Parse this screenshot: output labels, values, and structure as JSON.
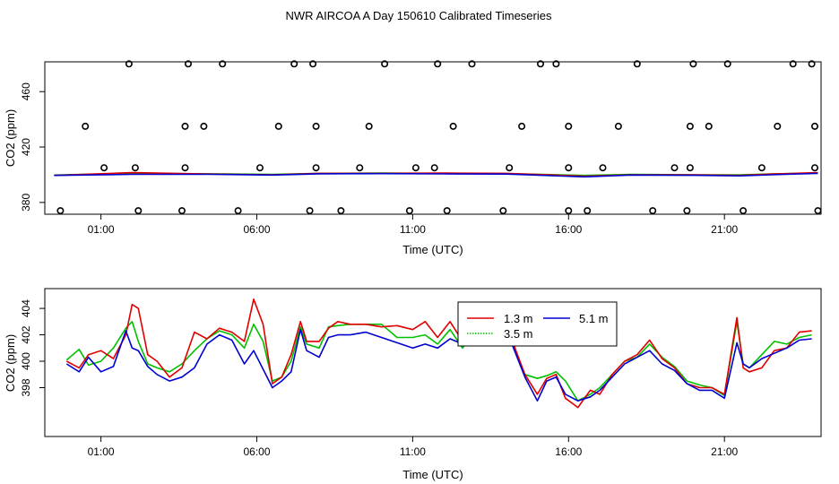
{
  "title": "NWR AIRCOA A  Day 150610  Calibrated Timeseries",
  "colors": {
    "s1": "#e00000",
    "s2": "#00c000",
    "s3": "#0000d0"
  },
  "chart_data": [
    {
      "type": "scatter",
      "name": "top",
      "xlabel": "Time (UTC)",
      "ylabel": "CO2 (ppm)",
      "xlim": [
        -0.8,
        24.1
      ],
      "ylim": [
        371.5,
        481.5
      ],
      "xticks": [
        1,
        6,
        11,
        16,
        21
      ],
      "xtick_labels": [
        "01:00",
        "06:00",
        "11:00",
        "16:00",
        "21:00"
      ],
      "yticks": [
        380,
        420,
        460
      ],
      "ytick_labels": [
        "380",
        "420",
        "460"
      ],
      "series": [
        {
          "name": "cal_points",
          "marker": "circle-open",
          "x": [
            -0.3,
            2.2,
            3.6,
            5.4,
            7.7,
            8.7,
            10.9,
            12.1,
            13.9,
            16.0,
            16.6,
            18.7,
            19.8,
            21.6,
            24.0,
            1.1,
            2.1,
            3.7,
            6.1,
            7.9,
            9.3,
            11.1,
            11.7,
            14.1,
            16.0,
            17.1,
            19.4,
            19.9,
            22.2,
            23.9,
            0.5,
            3.7,
            4.3,
            6.7,
            7.9,
            9.6,
            12.3,
            14.5,
            16.0,
            17.6,
            19.9,
            20.5,
            22.7,
            23.9,
            1.9,
            3.8,
            4.9,
            7.2,
            7.8,
            10.1,
            11.8,
            12.9,
            15.1,
            15.6,
            18.2,
            20.0,
            21.1,
            23.2,
            23.8
          ],
          "y": [
            374,
            374,
            374,
            374,
            374,
            374,
            374,
            374,
            374,
            374,
            374,
            374,
            374,
            374,
            374,
            405,
            405,
            405,
            405,
            405,
            405,
            405,
            405,
            405,
            405,
            405,
            405,
            405,
            405,
            405,
            435,
            435,
            435,
            435,
            435,
            435,
            435,
            435,
            435,
            435,
            435,
            435,
            435,
            435,
            480,
            480,
            480,
            480,
            480,
            480,
            480,
            480,
            480,
            480,
            480,
            480,
            480,
            480,
            480
          ]
        },
        {
          "name": "1.3 m",
          "x": [
            -0.5,
            2.0,
            4.5,
            6.5,
            8.0,
            10.0,
            12.0,
            14.0,
            16.5,
            18.0,
            20.0,
            21.5,
            22.5,
            24.0
          ],
          "y": [
            399.5,
            401.5,
            400.5,
            400.0,
            401.0,
            401.0,
            401.2,
            401.0,
            399.0,
            400.0,
            400.0,
            399.5,
            400.5,
            401.5
          ]
        },
        {
          "name": "3.5 m",
          "x": [
            -0.5,
            2.0,
            4.5,
            6.5,
            8.0,
            10.0,
            12.0,
            14.0,
            16.5,
            18.0,
            20.0,
            21.5,
            22.5,
            24.0
          ],
          "y": [
            399.8,
            401.0,
            400.7,
            400.3,
            401.0,
            401.2,
            401.0,
            400.8,
            399.5,
            400.2,
            400.0,
            400.0,
            400.6,
            401.2
          ]
        },
        {
          "name": "5.1 m",
          "x": [
            -0.5,
            2.0,
            4.5,
            6.5,
            8.0,
            10.0,
            12.0,
            14.0,
            16.5,
            18.0,
            20.0,
            21.5,
            22.5,
            24.0
          ],
          "y": [
            399.5,
            400.3,
            400.3,
            399.8,
            400.7,
            400.8,
            400.6,
            400.5,
            398.5,
            399.8,
            399.6,
            399.2,
            400.0,
            401.0
          ]
        }
      ]
    },
    {
      "type": "line",
      "name": "bottom",
      "xlabel": "Time (UTC)",
      "ylabel": "CO2 (ppm)",
      "xlim": [
        -0.8,
        24.1
      ],
      "ylim": [
        394.3,
        405.5
      ],
      "xticks": [
        1,
        6,
        11,
        16,
        21
      ],
      "xtick_labels": [
        "01:00",
        "06:00",
        "11:00",
        "16:00",
        "21:00"
      ],
      "yticks": [
        398,
        400,
        402,
        404
      ],
      "ytick_labels": [
        "398",
        "400",
        "402",
        "404"
      ],
      "legend": {
        "position": "top-right-inner",
        "entries": [
          "1.3 m",
          "3.5 m",
          "5.1 m"
        ]
      },
      "series": [
        {
          "name": "1.3 m",
          "x": [
            -0.1,
            0.3,
            0.6,
            1.0,
            1.4,
            1.8,
            2.0,
            2.2,
            2.5,
            2.8,
            3.2,
            3.6,
            4.0,
            4.4,
            4.8,
            5.2,
            5.6,
            5.9,
            6.2,
            6.5,
            6.8,
            7.1,
            7.4,
            7.6,
            8.0,
            8.3,
            8.6,
            9.0,
            9.5,
            10.0,
            10.5,
            11.0,
            11.4,
            11.8,
            12.2,
            12.6,
            13.0,
            13.4,
            13.8,
            14.2,
            14.6,
            15.0,
            15.3,
            15.6,
            15.9,
            16.3,
            16.7,
            17.0,
            17.4,
            17.8,
            18.2,
            18.6,
            19.0,
            19.4,
            19.8,
            20.2,
            20.6,
            21.0,
            21.4,
            21.6,
            21.8,
            22.2,
            22.6,
            23.0,
            23.4,
            23.8
          ],
          "y": [
            400.0,
            399.5,
            400.5,
            400.8,
            400.2,
            402.0,
            404.3,
            404.0,
            400.5,
            400.0,
            398.8,
            399.5,
            402.2,
            401.7,
            402.5,
            402.2,
            401.5,
            404.7,
            402.8,
            398.3,
            398.8,
            400.5,
            403.0,
            401.5,
            401.5,
            402.5,
            403.0,
            402.8,
            402.8,
            402.6,
            402.7,
            402.4,
            403.0,
            401.8,
            403.0,
            401.5,
            402.4,
            401.8,
            401.7,
            401.5,
            399.0,
            397.5,
            398.7,
            399.0,
            397.2,
            396.5,
            397.8,
            397.5,
            399.0,
            400.0,
            400.5,
            401.6,
            400.2,
            399.5,
            398.3,
            398.0,
            398.0,
            397.5,
            403.3,
            399.5,
            399.2,
            399.5,
            400.8,
            401.0,
            402.2,
            402.3
          ]
        },
        {
          "name": "3.5 m",
          "x": [
            -0.1,
            0.3,
            0.6,
            1.0,
            1.4,
            1.8,
            2.0,
            2.2,
            2.5,
            2.8,
            3.2,
            3.6,
            4.0,
            4.4,
            4.8,
            5.2,
            5.6,
            5.9,
            6.2,
            6.5,
            6.8,
            7.1,
            7.4,
            7.6,
            8.0,
            8.3,
            8.6,
            9.0,
            9.5,
            10.0,
            10.5,
            11.0,
            11.4,
            11.8,
            12.2,
            12.6,
            13.0,
            13.4,
            13.8,
            14.2,
            14.6,
            15.0,
            15.3,
            15.6,
            15.9,
            16.3,
            16.7,
            17.0,
            17.4,
            17.8,
            18.2,
            18.6,
            19.0,
            19.4,
            19.8,
            20.2,
            20.6,
            21.0,
            21.4,
            21.6,
            21.8,
            22.2,
            22.6,
            23.0,
            23.4,
            23.8
          ],
          "y": [
            400.1,
            400.9,
            399.7,
            400.0,
            401.0,
            402.5,
            403.0,
            401.5,
            399.8,
            399.5,
            399.2,
            399.8,
            400.8,
            401.7,
            402.3,
            402.0,
            401.0,
            402.8,
            401.5,
            398.5,
            398.8,
            400.0,
            402.6,
            401.3,
            401.0,
            402.6,
            402.7,
            402.8,
            402.8,
            402.8,
            401.8,
            401.8,
            402.0,
            401.3,
            402.4,
            401.0,
            402.2,
            401.5,
            401.6,
            401.3,
            399.0,
            398.7,
            398.9,
            399.2,
            398.5,
            397.0,
            397.5,
            398.0,
            399.0,
            400.0,
            400.3,
            401.3,
            400.3,
            399.6,
            398.5,
            398.2,
            398.0,
            397.4,
            403.0,
            399.8,
            399.5,
            400.5,
            401.5,
            401.3,
            401.8,
            402.0
          ]
        },
        {
          "name": "5.1 m",
          "x": [
            -0.1,
            0.3,
            0.6,
            1.0,
            1.4,
            1.8,
            2.0,
            2.2,
            2.5,
            2.8,
            3.2,
            3.6,
            4.0,
            4.4,
            4.8,
            5.2,
            5.6,
            5.9,
            6.2,
            6.5,
            6.8,
            7.1,
            7.4,
            7.6,
            8.0,
            8.3,
            8.6,
            9.0,
            9.5,
            10.0,
            10.5,
            11.0,
            11.4,
            11.8,
            12.2,
            12.6,
            13.0,
            13.4,
            13.8,
            14.2,
            14.6,
            15.0,
            15.3,
            15.6,
            15.9,
            16.3,
            16.7,
            17.0,
            17.4,
            17.8,
            18.2,
            18.6,
            19.0,
            19.4,
            19.8,
            20.2,
            20.6,
            21.0,
            21.4,
            21.6,
            21.8,
            22.2,
            22.6,
            23.0,
            23.4,
            23.8
          ],
          "y": [
            399.8,
            399.2,
            400.3,
            399.2,
            399.6,
            402.3,
            401.0,
            400.8,
            399.6,
            399.0,
            398.5,
            398.8,
            399.5,
            401.3,
            402.0,
            401.6,
            399.8,
            400.8,
            399.4,
            398.0,
            398.5,
            399.2,
            402.4,
            400.8,
            400.3,
            401.8,
            402.0,
            402.0,
            402.2,
            401.8,
            401.4,
            401.0,
            401.3,
            401.0,
            401.7,
            401.3,
            401.5,
            401.2,
            401.3,
            401.2,
            398.8,
            397.0,
            398.5,
            398.8,
            397.5,
            397.0,
            397.3,
            397.8,
            398.8,
            399.8,
            400.3,
            400.8,
            399.8,
            399.3,
            398.3,
            397.8,
            397.8,
            397.2,
            401.4,
            399.8,
            399.5,
            400.2,
            400.6,
            401.0,
            401.6,
            401.7
          ]
        }
      ]
    }
  ]
}
